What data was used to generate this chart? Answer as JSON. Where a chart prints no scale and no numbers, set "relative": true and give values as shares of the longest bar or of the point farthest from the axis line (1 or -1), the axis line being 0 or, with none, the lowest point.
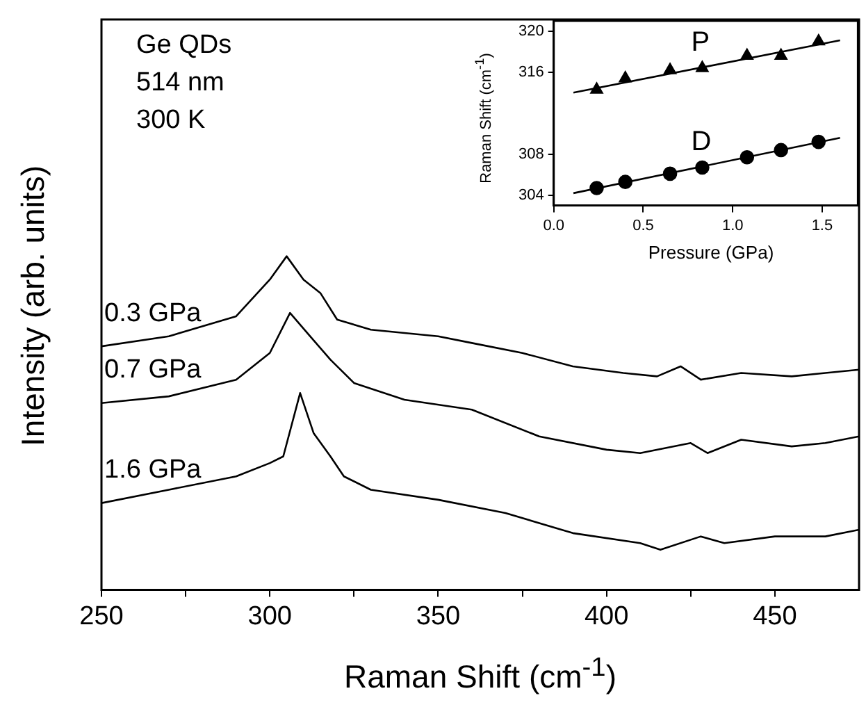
{
  "chart_data": [
    {
      "type": "line",
      "xlabel": "Raman Shift (cm$^{-1}$)",
      "ylabel": "Intensity (arb. units)",
      "relative": true,
      "grid": false,
      "legend": false,
      "xlim": [
        250,
        475
      ],
      "xticks": [
        250,
        {
          "value": 275,
          "label": null
        },
        300,
        {
          "value": 325,
          "label": null
        },
        350,
        {
          "value": 375,
          "label": null
        },
        400,
        {
          "value": 425,
          "label": null
        },
        450
      ],
      "annotations": [
        "Ge QDs",
        "514 nm",
        "300 K"
      ],
      "series": [
        {
          "name": "0.3 GPa",
          "color": "#000000",
          "x": [
            250,
            270,
            290,
            300,
            305,
            310,
            315,
            320,
            330,
            350,
            360,
            375,
            390,
            405,
            415,
            422,
            428,
            440,
            455,
            465,
            475
          ],
          "values": [
            0.73,
            0.76,
            0.82,
            0.93,
            1,
            0.93,
            0.89,
            0.81,
            0.78,
            0.76,
            0.74,
            0.71,
            0.67,
            0.65,
            0.64,
            0.67,
            0.63,
            0.65,
            0.64,
            0.65,
            0.66
          ]
        },
        {
          "name": "0.7 GPa",
          "color": "#000000",
          "x": [
            250,
            270,
            290,
            300,
            306,
            312,
            318,
            325,
            340,
            360,
            380,
            400,
            410,
            425,
            430,
            440,
            455,
            465,
            475
          ],
          "values": [
            0.56,
            0.58,
            0.63,
            0.71,
            0.83,
            0.76,
            0.69,
            0.62,
            0.57,
            0.54,
            0.46,
            0.42,
            0.41,
            0.44,
            0.41,
            0.45,
            0.43,
            0.44,
            0.46
          ]
        },
        {
          "name": "1.6 GPa",
          "color": "#000000",
          "x": [
            250,
            270,
            290,
            300,
            304,
            309,
            313,
            318,
            322,
            330,
            350,
            370,
            390,
            410,
            416,
            428,
            435,
            450,
            465,
            475
          ],
          "values": [
            0.26,
            0.3,
            0.34,
            0.38,
            0.4,
            0.59,
            0.47,
            0.4,
            0.34,
            0.3,
            0.27,
            0.23,
            0.17,
            0.14,
            0.12,
            0.16,
            0.14,
            0.16,
            0.16,
            0.18
          ]
        }
      ]
    },
    {
      "type": "scatter",
      "xlabel": "Pressure (GPa)",
      "ylabel": "Raman Shift (cm$^{-1}$)",
      "grid": false,
      "legend": false,
      "xlim": [
        0,
        1.7
      ],
      "xticks": [
        {
          "value": 0,
          "label": "0.0"
        },
        0.5,
        {
          "value": 1,
          "label": "1.0"
        },
        1.5
      ],
      "ylim": [
        303,
        321
      ],
      "yticks": [
        304,
        308,
        316,
        320
      ],
      "series": [
        {
          "name": "P",
          "color": "#000000",
          "marker": "triangle",
          "x": [
            0.24,
            0.4,
            0.65,
            0.83,
            1.08,
            1.27,
            1.48
          ],
          "values": [
            314.3,
            315.4,
            316.2,
            316.4,
            317.6,
            317.6,
            319
          ]
        },
        {
          "name": "D",
          "color": "#000000",
          "marker": "circle",
          "x": [
            0.24,
            0.4,
            0.65,
            0.83,
            1.08,
            1.27,
            1.48
          ],
          "values": [
            304.7,
            305.3,
            306.1,
            306.7,
            307.7,
            308.4,
            309.2
          ]
        },
        {
          "type": "line",
          "color": "#000000",
          "marker": "none",
          "x": [
            0.11,
            1.6
          ],
          "values": [
            314,
            319.1
          ]
        },
        {
          "type": "line",
          "color": "#000000",
          "marker": "none",
          "x": [
            0.11,
            1.6
          ],
          "values": [
            304.2,
            309.6
          ]
        }
      ]
    }
  ]
}
